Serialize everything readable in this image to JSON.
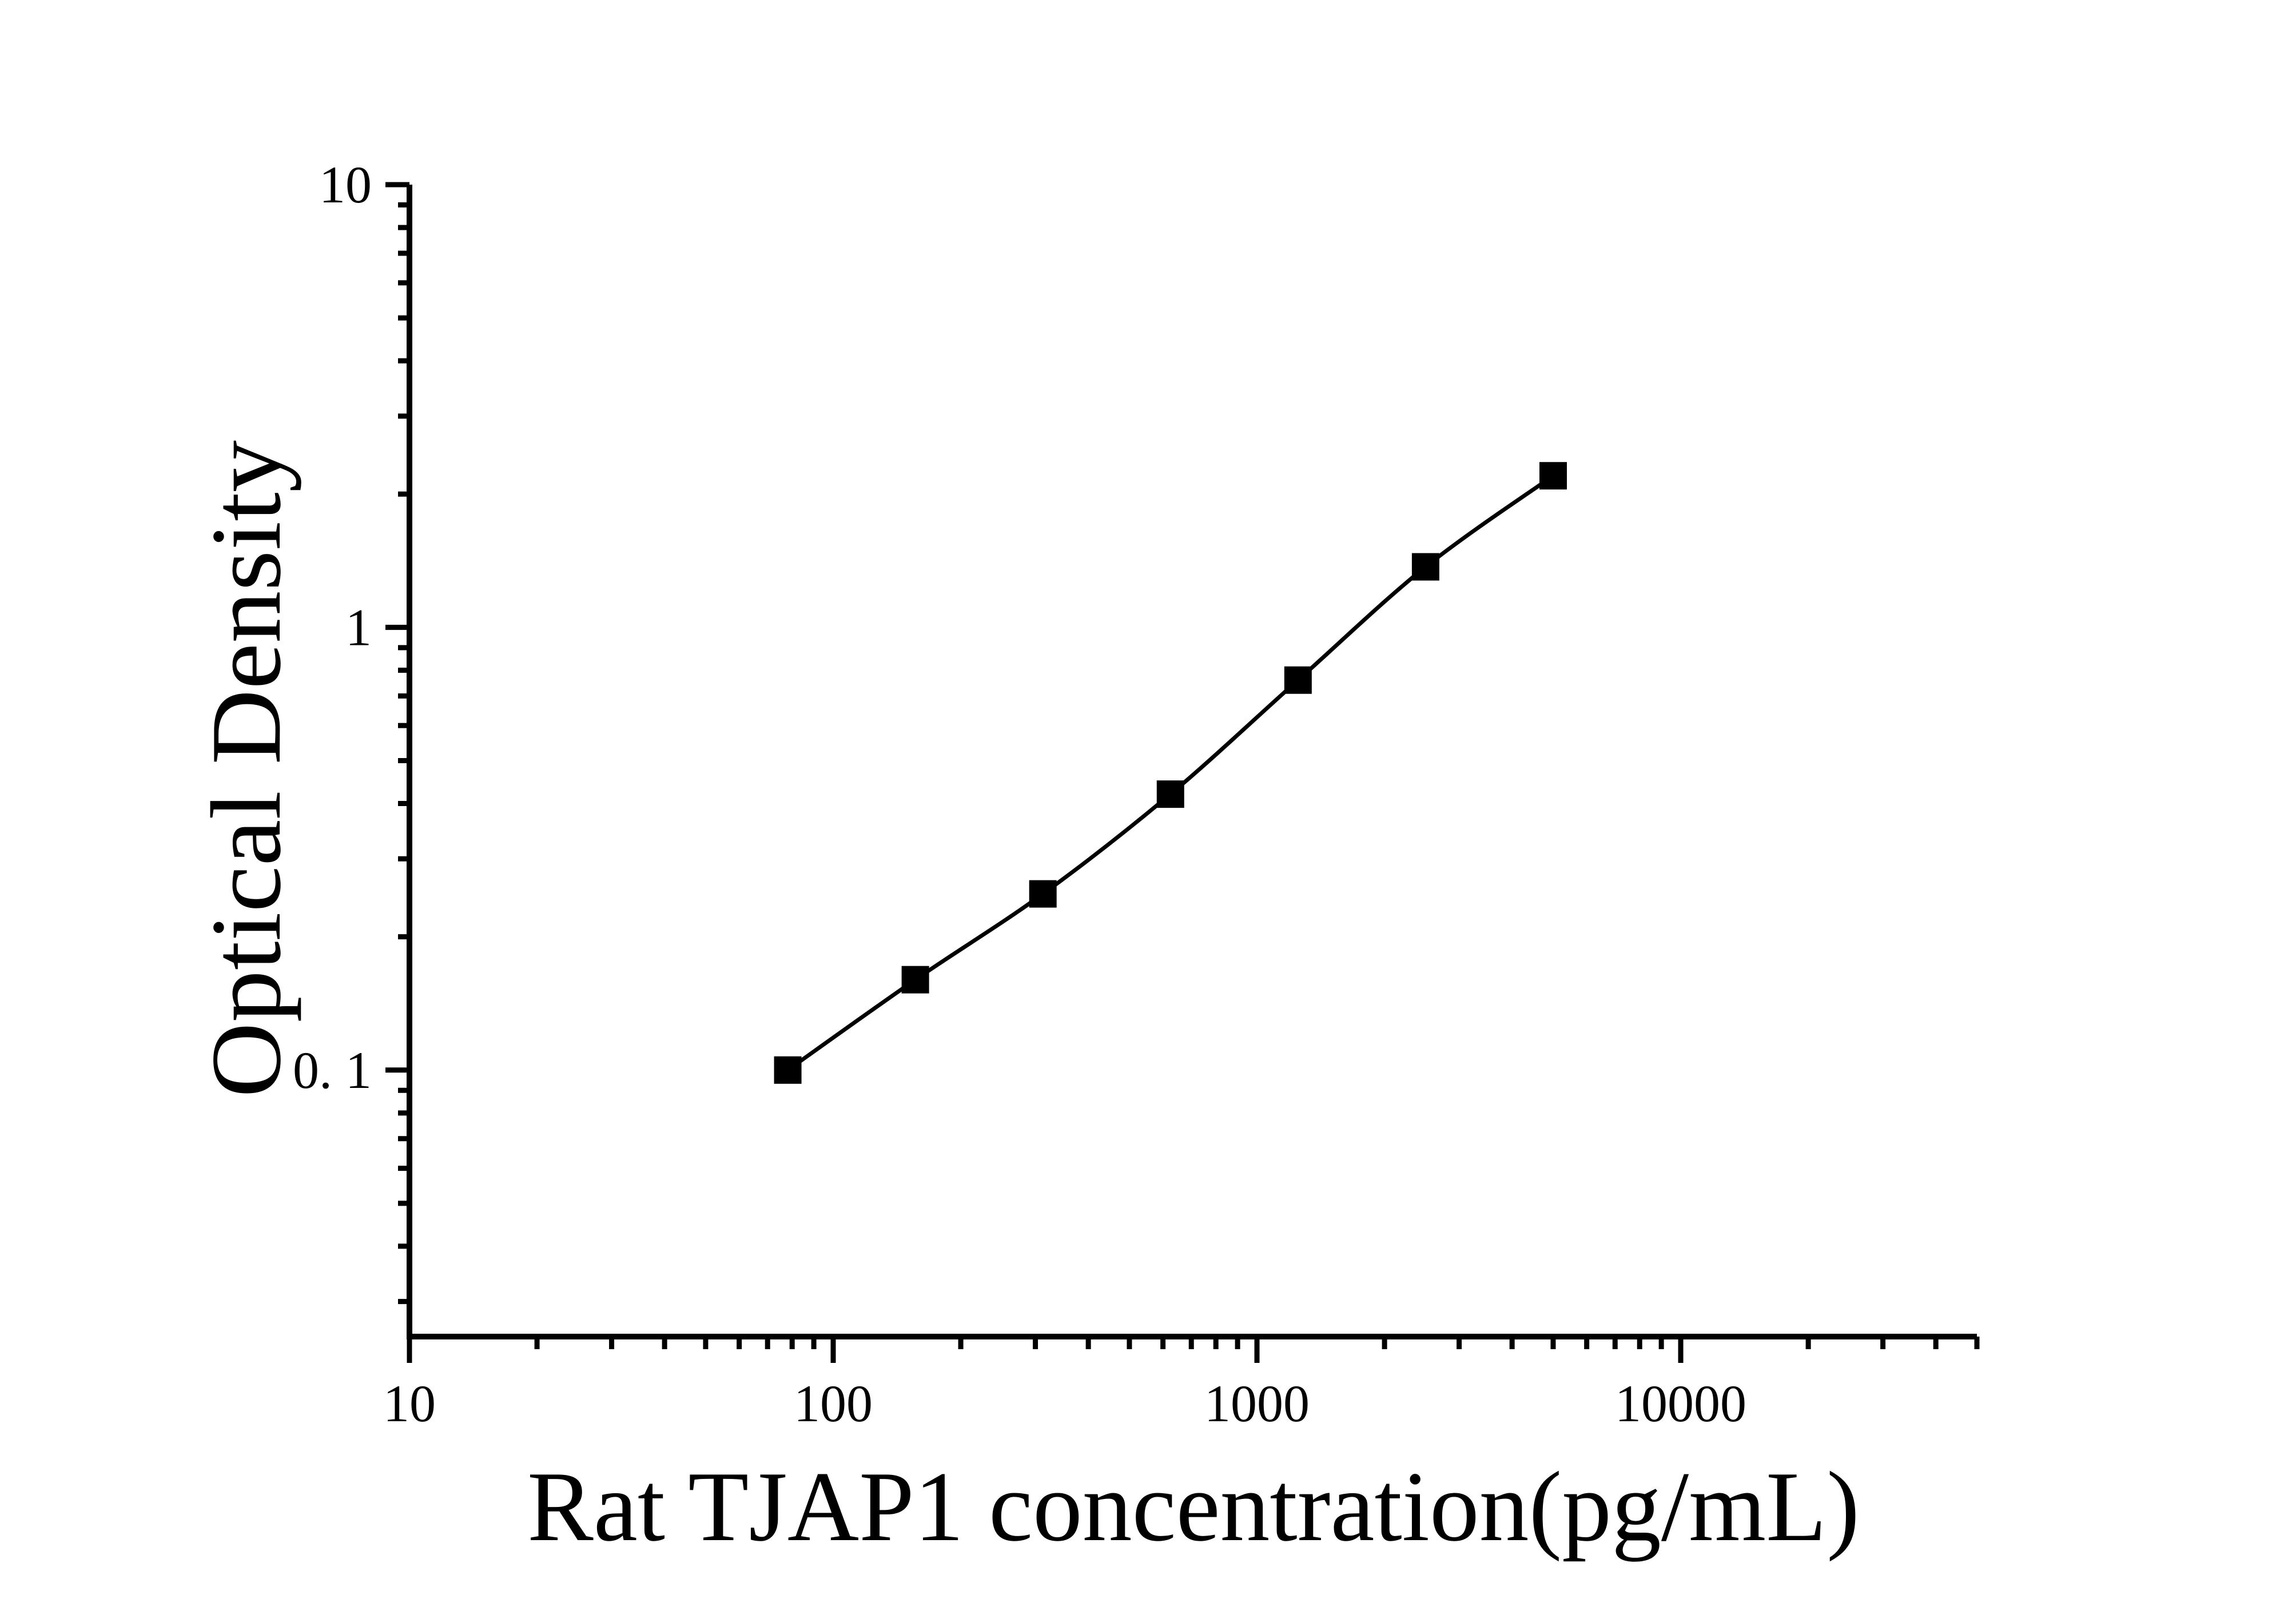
{
  "figure": {
    "background_color": "#ffffff",
    "ink_color": "#000000"
  },
  "chart_data": {
    "type": "scatter",
    "title": "",
    "xlabel": "Rat TJAP1 concentration(pg/mL)",
    "ylabel": "Optical Density",
    "x_scale": "log",
    "y_scale": "log",
    "xlim": [
      10,
      50000
    ],
    "ylim": [
      0.025,
      10
    ],
    "grid": false,
    "legend": null,
    "x_ticks": {
      "major_values": [
        10,
        100,
        1000,
        10000
      ],
      "major_labels": [
        "10",
        "100",
        "1000",
        "10000"
      ],
      "minor_pattern": "log-decades 2-9 up to 50000"
    },
    "y_ticks": {
      "major_values": [
        10,
        1,
        0.1
      ],
      "major_labels": [
        "10",
        "1",
        "0. 1"
      ],
      "minor_pattern": "log-decades 2-9 down to 0.03"
    },
    "series": [
      {
        "name": "standard-curve",
        "marker": "filled-square",
        "marker_color": "#000000",
        "line_color": "#000000",
        "points": [
          {
            "x": 78.125,
            "y": 0.1
          },
          {
            "x": 156.25,
            "y": 0.16
          },
          {
            "x": 312.5,
            "y": 0.25
          },
          {
            "x": 625,
            "y": 0.42
          },
          {
            "x": 1250,
            "y": 0.76
          },
          {
            "x": 2500,
            "y": 1.37
          },
          {
            "x": 5000,
            "y": 2.2
          }
        ]
      }
    ]
  }
}
